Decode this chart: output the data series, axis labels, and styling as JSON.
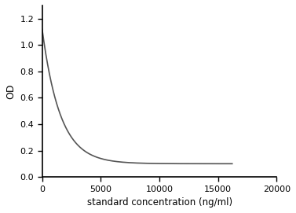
{
  "title": "",
  "xlabel": "standard concentration (ng/ml)",
  "ylabel": "OD",
  "xlim": [
    0,
    20000
  ],
  "ylim": [
    0,
    1.3
  ],
  "yticks": [
    0,
    0.2,
    0.4,
    0.6,
    0.8,
    1.0,
    1.2
  ],
  "xticks": [
    0,
    5000,
    10000,
    15000,
    20000
  ],
  "line_color": "#555555",
  "line_width": 1.2,
  "background_color": "#ffffff",
  "curve_end_x": 16200,
  "curve_start_y": 1.12,
  "asymptote": 0.1,
  "decay_k": 0.00065
}
